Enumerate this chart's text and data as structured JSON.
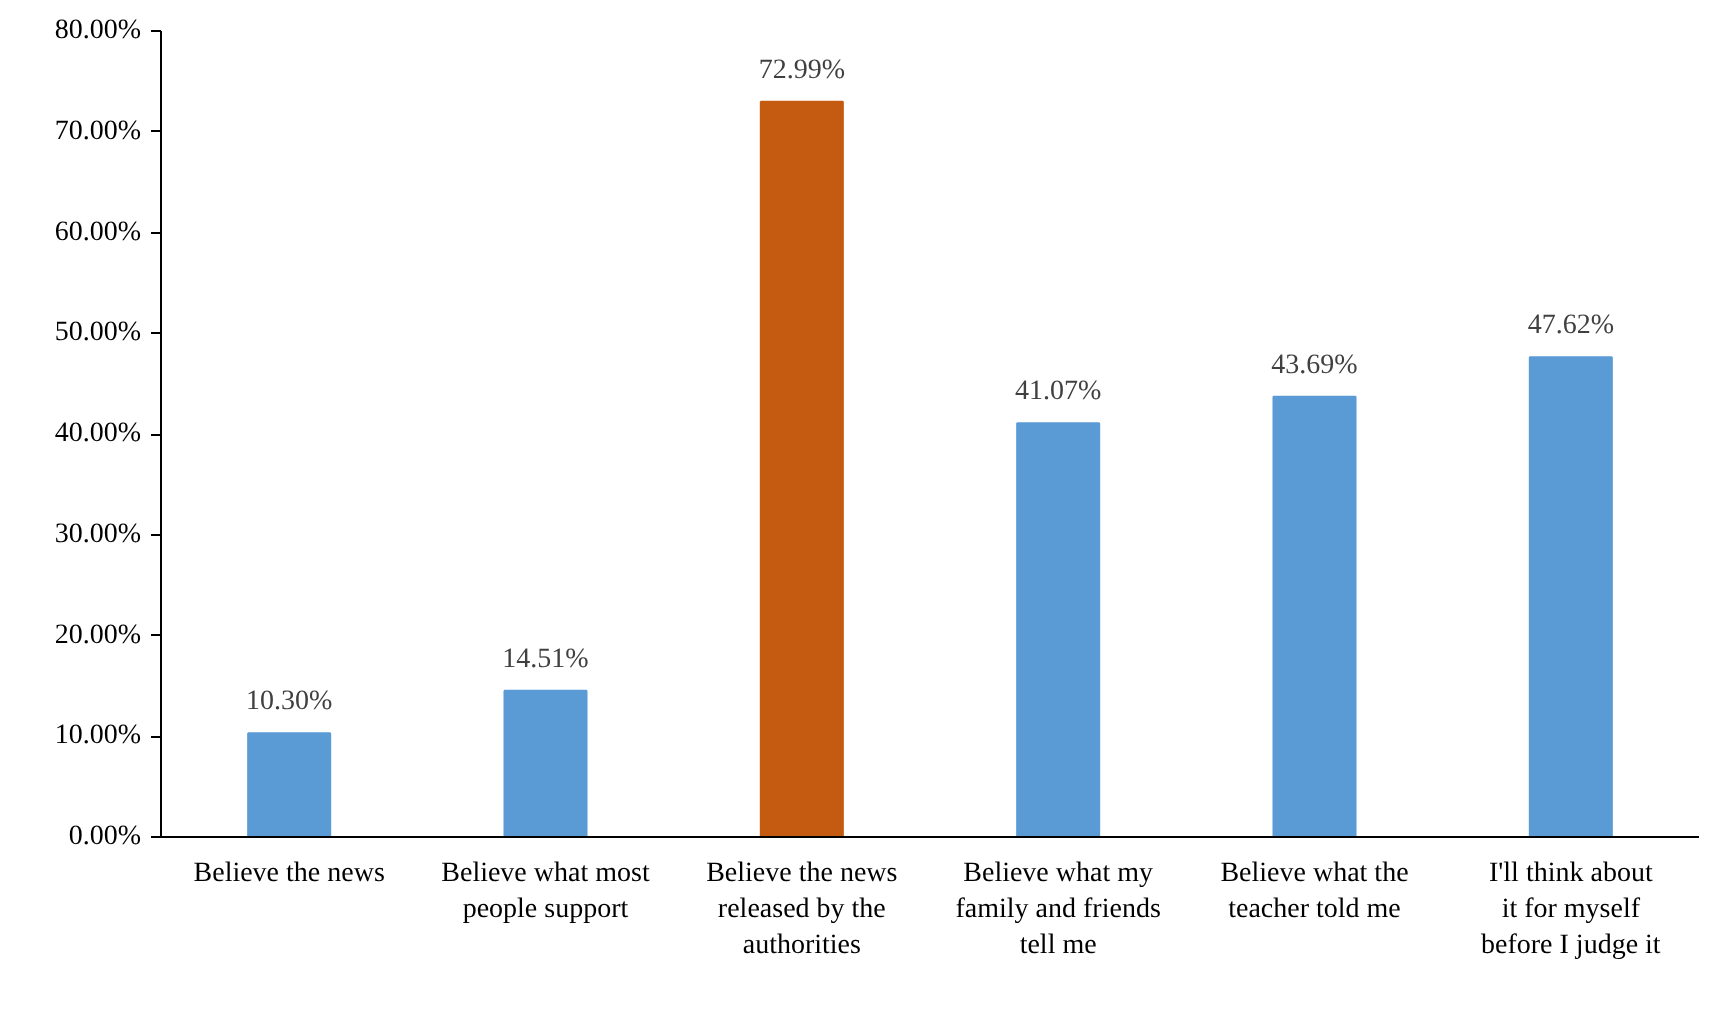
{
  "chart_data": {
    "type": "bar",
    "categories": [
      "Believe the news",
      "Believe what most people support",
      "Believe the news released by the authorities",
      "Believe what my family and friends tell me",
      "Believe what the teacher told me",
      "I'll think about it for myself before I judge it"
    ],
    "values": [
      10.3,
      14.51,
      72.99,
      41.07,
      43.69,
      47.62
    ],
    "colors": [
      "#5b9bd5",
      "#5b9bd5",
      "#c55a11",
      "#5b9bd5",
      "#5b9bd5",
      "#5b9bd5"
    ],
    "value_labels": [
      "10.30%",
      "14.51%",
      "72.99%",
      "41.07%",
      "43.69%",
      "47.62%"
    ],
    "ylim": [
      0,
      80
    ],
    "yticks": [
      {
        "value": 0,
        "label": "0.00%"
      },
      {
        "value": 10,
        "label": "10.00%"
      },
      {
        "value": 20,
        "label": "20.00%"
      },
      {
        "value": 30,
        "label": "30.00%"
      },
      {
        "value": 40,
        "label": "40.00%"
      },
      {
        "value": 50,
        "label": "50.00%"
      },
      {
        "value": 60,
        "label": "60.00%"
      },
      {
        "value": 70,
        "label": "70.00%"
      },
      {
        "value": 80,
        "label": "80.00%"
      }
    ],
    "grid": false
  }
}
